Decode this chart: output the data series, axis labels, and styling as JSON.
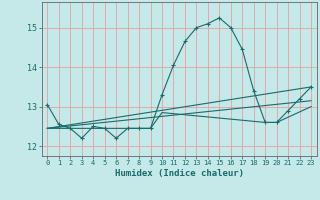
{
  "xlabel": "Humidex (Indice chaleur)",
  "bg_color": "#c5e8e8",
  "line_color": "#1a6b6b",
  "grid_color": "#e8a0a0",
  "xlim": [
    -0.5,
    23.5
  ],
  "ylim": [
    11.75,
    15.65
  ],
  "yticks": [
    12,
    13,
    14,
    15
  ],
  "xticks": [
    0,
    1,
    2,
    3,
    4,
    5,
    6,
    7,
    8,
    9,
    10,
    11,
    12,
    13,
    14,
    15,
    16,
    17,
    18,
    19,
    20,
    21,
    22,
    23
  ],
  "curve1_x": [
    0,
    1,
    2,
    3,
    4,
    5,
    6,
    7,
    8,
    9,
    10,
    11,
    12,
    13,
    14,
    15,
    16,
    17,
    18,
    19,
    20,
    21,
    22,
    23
  ],
  "curve1_y": [
    13.05,
    12.55,
    12.45,
    12.2,
    12.5,
    12.45,
    12.2,
    12.45,
    12.45,
    12.45,
    13.3,
    14.05,
    14.65,
    15.0,
    15.1,
    15.25,
    15.0,
    14.45,
    13.4,
    12.6,
    12.6,
    12.9,
    13.2,
    13.5
  ],
  "curve2_x": [
    0,
    23
  ],
  "curve2_y": [
    12.45,
    13.5
  ],
  "curve3_x": [
    0,
    23
  ],
  "curve3_y": [
    12.45,
    13.15
  ],
  "curve4_x": [
    0,
    9,
    10,
    19,
    20,
    23
  ],
  "curve4_y": [
    12.45,
    12.45,
    12.85,
    12.6,
    12.6,
    13.0
  ]
}
